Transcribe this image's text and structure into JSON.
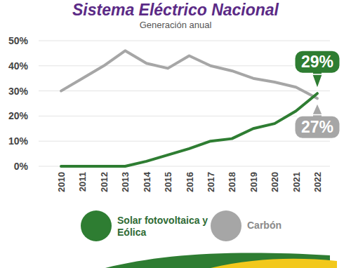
{
  "chart_data": {
    "type": "line",
    "title": "Sistema Eléctrico Nacional",
    "subtitle": "Generación anual",
    "categories": [
      "2010",
      "2011",
      "2012",
      "2013",
      "2014",
      "2015",
      "2016",
      "2017",
      "2018",
      "2019",
      "2020",
      "2021",
      "2022"
    ],
    "series": [
      {
        "name": "Solar fotovoltaica y Eólica",
        "color": "#2e7d32",
        "values": [
          0,
          0,
          0,
          0,
          2,
          4.5,
          7,
          10,
          11,
          15,
          17,
          22,
          29
        ]
      },
      {
        "name": "Carbón",
        "color": "#a6a6a6",
        "values": [
          30,
          35,
          40,
          46,
          41,
          39,
          44,
          40,
          38,
          35,
          33.5,
          31.5,
          27
        ]
      }
    ],
    "annotations": [
      "29%",
      "27%"
    ],
    "ylim": [
      0,
      50
    ],
    "yticks": [
      {
        "value": 0,
        "label": "0%"
      },
      {
        "value": 10,
        "label": "10%"
      },
      {
        "value": 20,
        "label": "20%"
      },
      {
        "value": 30,
        "label": "30%"
      },
      {
        "value": 40,
        "label": "40%"
      },
      {
        "value": 50,
        "label": "50%"
      }
    ],
    "grid": true
  }
}
